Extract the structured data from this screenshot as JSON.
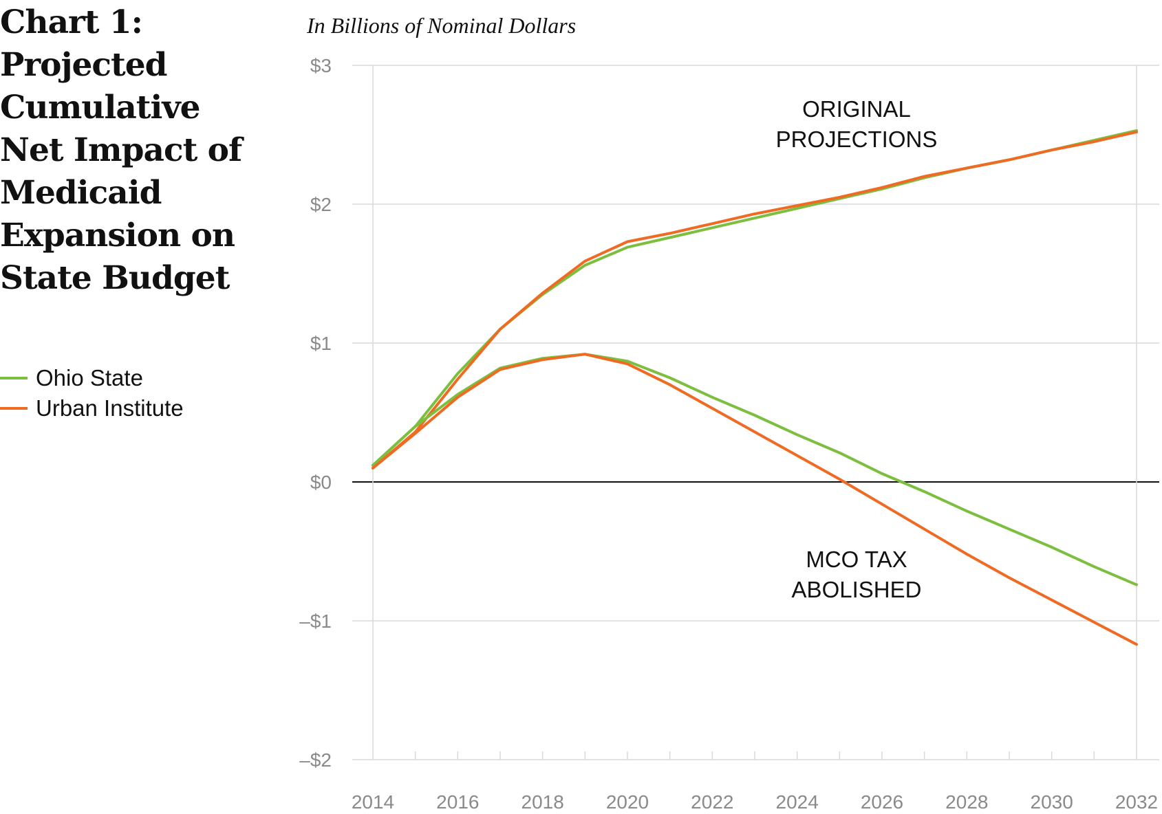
{
  "chart_data": {
    "type": "line",
    "title": "Chart 1:\nProjected\nCumulative\nNet Impact of\nMedicaid\nExpansion on\nState Budget",
    "subtitle": "In Billions of Nominal Dollars",
    "xlabel": "",
    "ylabel": "",
    "x": [
      2014,
      2015,
      2016,
      2017,
      2018,
      2019,
      2020,
      2021,
      2022,
      2023,
      2024,
      2025,
      2026,
      2027,
      2028,
      2029,
      2030,
      2031,
      2032
    ],
    "xlim": [
      2014,
      2032
    ],
    "ylim": [
      -2,
      3
    ],
    "x_ticks": [
      2014,
      2016,
      2018,
      2020,
      2022,
      2024,
      2026,
      2028,
      2030,
      2032
    ],
    "x_tick_labels": [
      "2014",
      "2016",
      "2018",
      "2020",
      "2022",
      "2024",
      "2026",
      "2028",
      "2030",
      "2032"
    ],
    "y_ticks": [
      3,
      2,
      1,
      0,
      -1,
      -2
    ],
    "y_tick_labels": [
      "$3",
      "$2",
      "$1",
      "$0",
      "–$1",
      "–$2"
    ],
    "grid": true,
    "legend_position": "left",
    "series": [
      {
        "name": "Ohio State",
        "color": "#7cbf3f",
        "scenario": "ORIGINAL PROJECTIONS",
        "values": [
          0.12,
          0.4,
          0.78,
          1.1,
          1.35,
          1.56,
          1.69,
          1.76,
          1.83,
          1.9,
          1.97,
          2.04,
          2.11,
          2.19,
          2.26,
          2.32,
          2.39,
          2.46,
          2.53
        ]
      },
      {
        "name": "Urban Institute",
        "color": "#ef6a23",
        "scenario": "ORIGINAL PROJECTIONS",
        "values": [
          0.1,
          0.36,
          0.74,
          1.1,
          1.36,
          1.59,
          1.73,
          1.79,
          1.86,
          1.93,
          1.99,
          2.05,
          2.12,
          2.2,
          2.26,
          2.32,
          2.39,
          2.45,
          2.52
        ]
      },
      {
        "name": "Ohio State",
        "color": "#7cbf3f",
        "scenario": "MCO TAX ABOLISHED",
        "values": [
          0.12,
          0.4,
          0.63,
          0.82,
          0.89,
          0.92,
          0.87,
          0.75,
          0.61,
          0.48,
          0.34,
          0.21,
          0.06,
          -0.07,
          -0.21,
          -0.34,
          -0.47,
          -0.61,
          -0.74
        ]
      },
      {
        "name": "Urban Institute",
        "color": "#ef6a23",
        "scenario": "MCO TAX ABOLISHED",
        "values": [
          0.1,
          0.35,
          0.61,
          0.81,
          0.88,
          0.92,
          0.85,
          0.7,
          0.53,
          0.36,
          0.19,
          0.02,
          -0.16,
          -0.34,
          -0.52,
          -0.69,
          -0.85,
          -1.01,
          -1.17
        ]
      }
    ],
    "annotations": [
      "ORIGINAL\nPROJECTIONS",
      "MCO TAX\nABOLISHED"
    ],
    "legend": [
      {
        "label": "Ohio State",
        "color": "#7cbf3f"
      },
      {
        "label": "Urban Institute",
        "color": "#ef6a23"
      }
    ]
  }
}
